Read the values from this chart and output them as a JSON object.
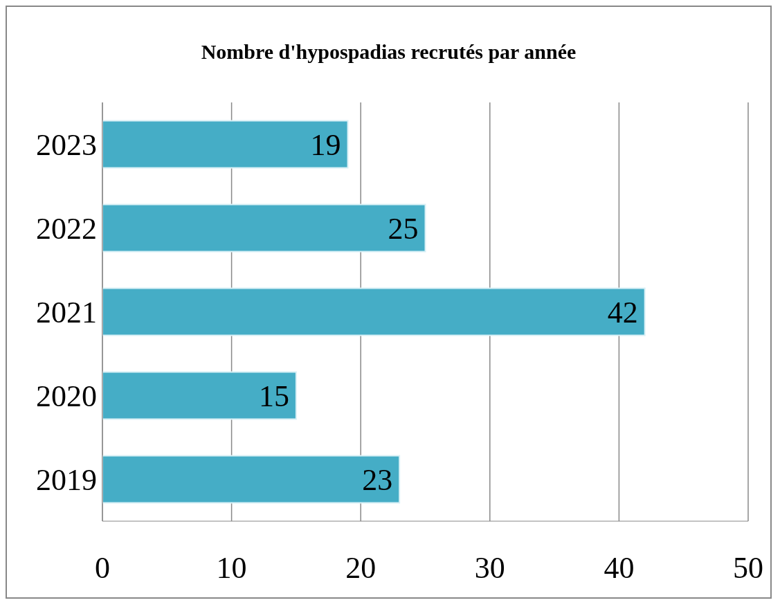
{
  "chart_data": {
    "type": "bar",
    "orientation": "horizontal",
    "title": "Nombre d'hypospadias recrutés par année",
    "categories": [
      "2023",
      "2022",
      "2021",
      "2020",
      "2019"
    ],
    "values": [
      19,
      25,
      42,
      15,
      23
    ],
    "color": "#45adc6",
    "xlim": [
      0,
      50
    ],
    "xticks": [
      0,
      10,
      20,
      30,
      40,
      50
    ],
    "grid": "x",
    "data_labels": true
  }
}
